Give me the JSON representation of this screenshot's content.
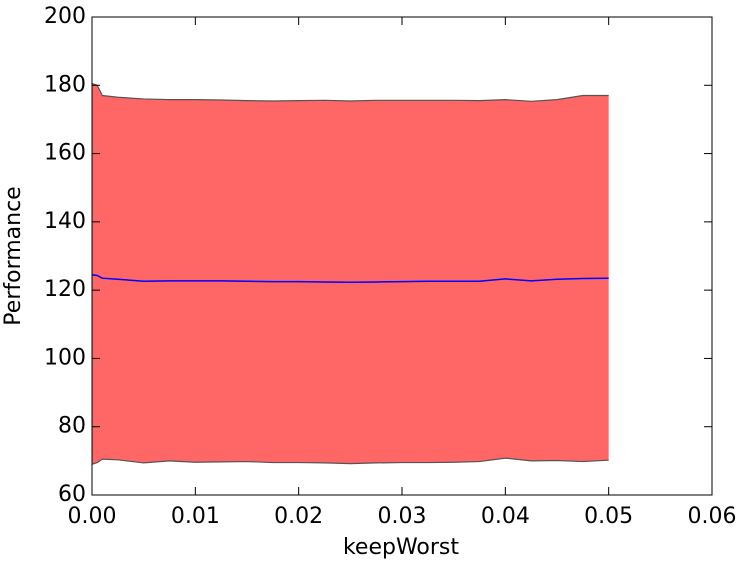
{
  "chart_data": {
    "type": "line",
    "xlabel": "keepWorst",
    "ylabel": "Performance",
    "x": [
      0,
      0.0005,
      0.001,
      0.0025,
      0.005,
      0.0075,
      0.01,
      0.0125,
      0.015,
      0.0175,
      0.02,
      0.0225,
      0.025,
      0.0275,
      0.03,
      0.0325,
      0.035,
      0.0375,
      0.04,
      0.0425,
      0.045,
      0.0475,
      0.05
    ],
    "line": {
      "color": "#0000ff",
      "values": [
        124.5,
        124.3,
        123.5,
        123.2,
        122.6,
        122.7,
        122.7,
        122.7,
        122.6,
        122.5,
        122.5,
        122.4,
        122.3,
        122.4,
        122.5,
        122.6,
        122.6,
        122.6,
        123.3,
        122.7,
        123.2,
        123.4,
        123.5
      ]
    },
    "band": {
      "color": "#ff6666",
      "edge_color": "#555555",
      "upper": [
        180.5,
        180,
        177,
        176.5,
        176,
        175.8,
        175.8,
        175.7,
        175.5,
        175.4,
        175.5,
        175.6,
        175.4,
        175.6,
        175.6,
        175.6,
        175.6,
        175.5,
        175.8,
        175.3,
        175.8,
        177,
        177
      ],
      "lower": [
        69,
        69.5,
        70.5,
        70.3,
        69.4,
        70,
        69.6,
        69.7,
        69.8,
        69.5,
        69.5,
        69.4,
        69.2,
        69.4,
        69.5,
        69.5,
        69.6,
        69.8,
        70.8,
        70,
        70.1,
        69.8,
        70.2
      ]
    },
    "xlim": [
      0,
      0.06
    ],
    "xticks": [
      {
        "value": 0,
        "label": "0.00"
      },
      {
        "value": 0.01,
        "label": "0.01"
      },
      {
        "value": 0.02,
        "label": "0.02"
      },
      {
        "value": 0.03,
        "label": "0.03"
      },
      {
        "value": 0.04,
        "label": "0.04"
      },
      {
        "value": 0.05,
        "label": "0.05"
      },
      {
        "value": 0.06,
        "label": "0.06"
      }
    ],
    "ylim": [
      60,
      200
    ],
    "yticks": [
      60,
      80,
      100,
      120,
      140,
      160,
      180,
      200
    ]
  }
}
